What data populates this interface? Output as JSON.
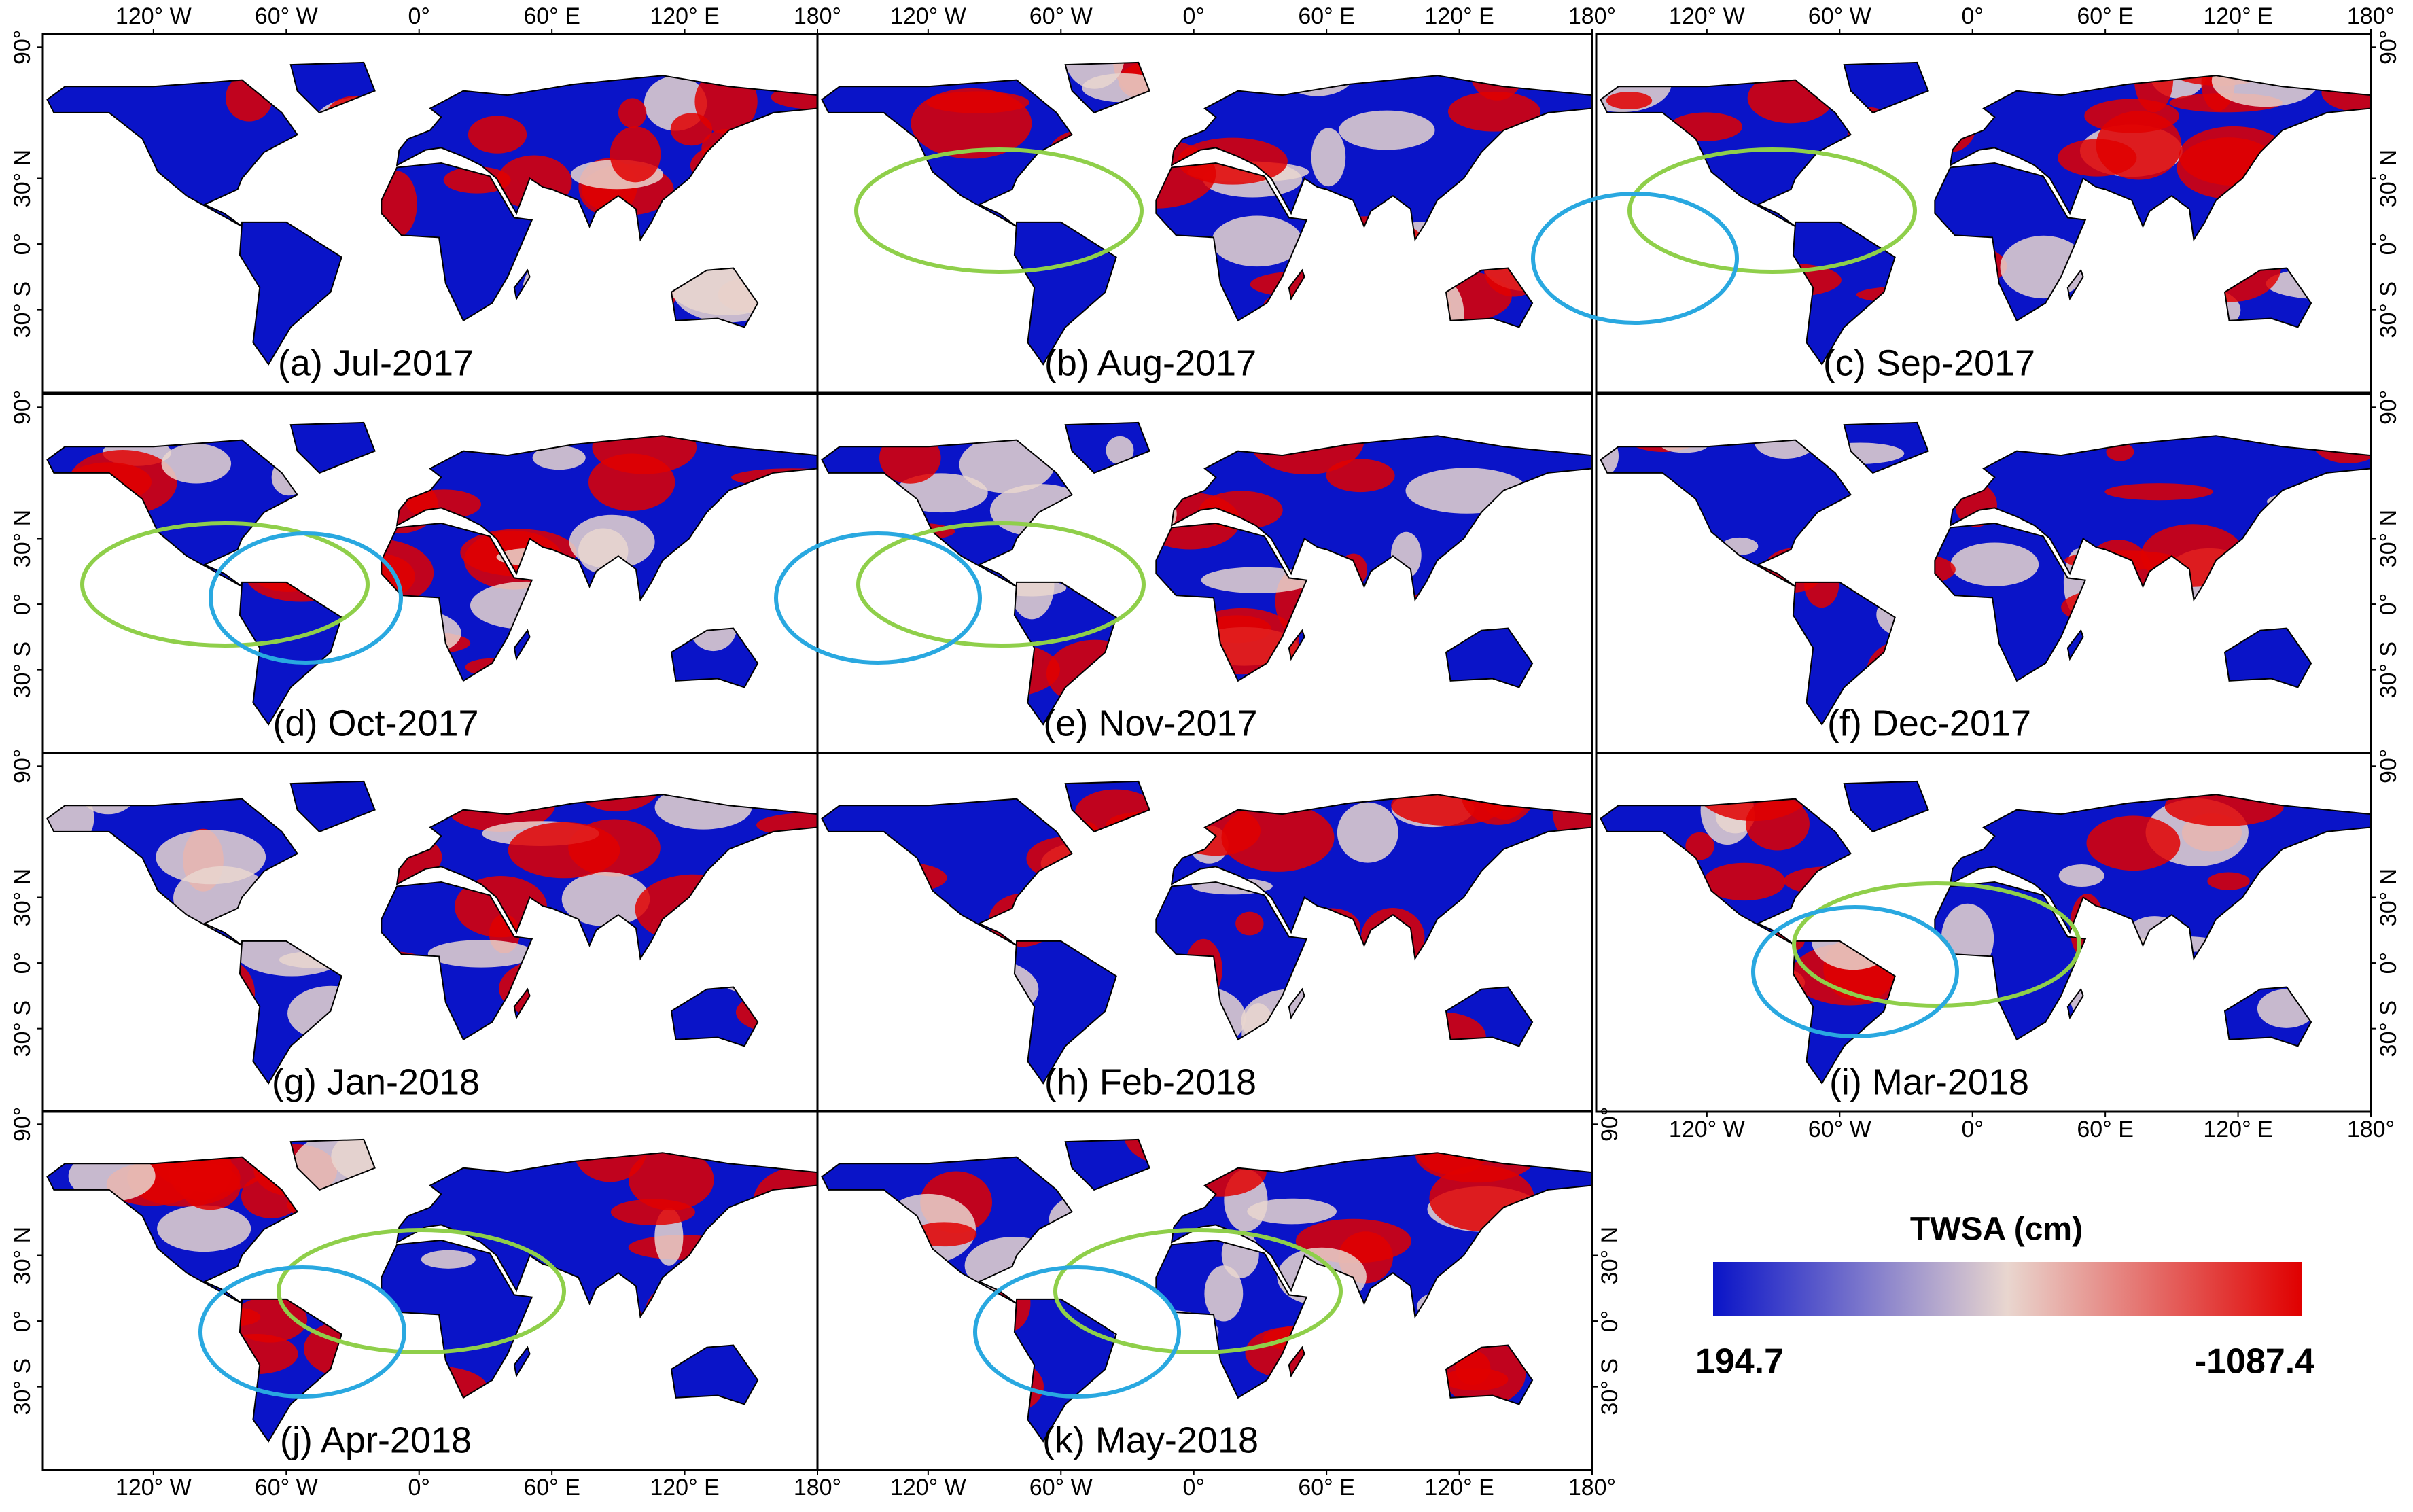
{
  "figure": {
    "extent": {
      "xlim": [
        -170,
        180
      ],
      "ylim": [
        96,
        -68
      ]
    },
    "lon_ticks": [
      {
        "value": -120,
        "label": "120° W"
      },
      {
        "value": -60,
        "label": "60° W"
      },
      {
        "value": 0,
        "label": "0°"
      },
      {
        "value": 60,
        "label": "60° E"
      },
      {
        "value": 120,
        "label": "120° E"
      },
      {
        "value": 180,
        "label": "180°"
      }
    ],
    "lat_ticks": [
      {
        "value": 90,
        "label": "90°"
      },
      {
        "value": 30,
        "label": "30° N"
      },
      {
        "value": 0,
        "label": "0°"
      },
      {
        "value": -30,
        "label": "30° S"
      }
    ],
    "panels": [
      {
        "label": "(a) Jul-2017"
      },
      {
        "label": "(b) Aug-2017"
      },
      {
        "label": "(c) Sep-2017"
      },
      {
        "label": "(d) Oct-2017"
      },
      {
        "label": "(e) Nov-2017"
      },
      {
        "label": "(f) Dec-2017"
      },
      {
        "label": "(g) Jan-2018"
      },
      {
        "label": "(h) Feb-2018"
      },
      {
        "label": "(i) Mar-2018"
      },
      {
        "label": "(j) Apr-2018"
      },
      {
        "label": "(k) May-2018"
      }
    ],
    "colorbar": {
      "title": "TWSA (cm)",
      "range": [
        194.7,
        -1087.4
      ],
      "colors": [
        "#0a14c8",
        "#e9d6cf",
        "#e00000"
      ]
    }
  }
}
